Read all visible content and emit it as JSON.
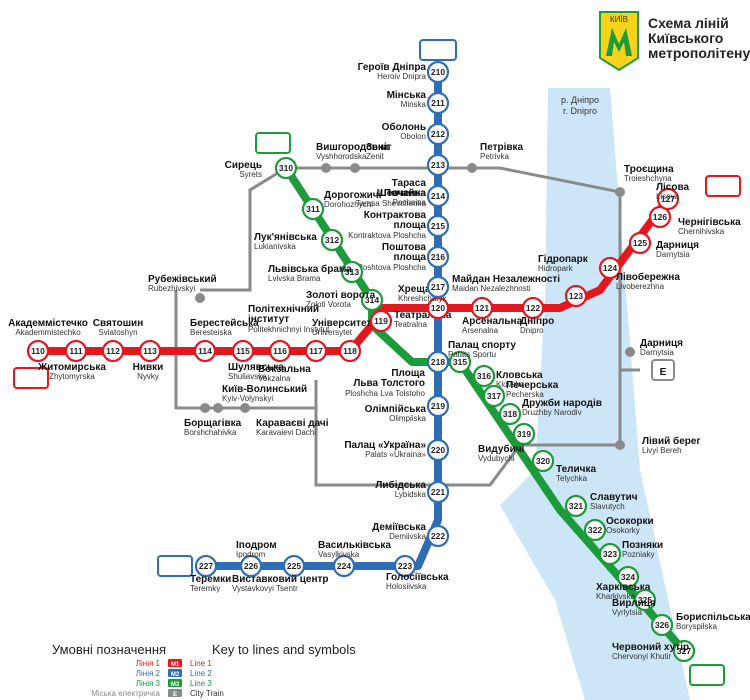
{
  "title": {
    "lines": [
      "Схема ліній",
      "Київського",
      "метрополітену"
    ],
    "logo_text": "КИЇВ"
  },
  "river": {
    "ua": "р. Дніпро",
    "en": "r. Dnipro"
  },
  "colors": {
    "m1": "#e3171e",
    "m2": "#2f6db5",
    "m3": "#1b9b3a",
    "city_train": "#8a8a8a",
    "river": "#cde6f7"
  },
  "line_badges": {
    "m1_west": "M1",
    "m1_east": "M1",
    "m2_north": "M2",
    "m2_south": "M2",
    "m3_north": "M3",
    "m3_south": "M3"
  },
  "stations_m1": [
    {
      "num": "110",
      "name": "Академмістечко",
      "lat": "Akademmistechko"
    },
    {
      "num": "111",
      "name": "Житомирська",
      "lat": "Zhytomyrska"
    },
    {
      "num": "112",
      "name": "Святошин",
      "lat": "Sviatoshyn"
    },
    {
      "num": "113",
      "name": "Нивки",
      "lat": "Nyvky"
    },
    {
      "num": "114",
      "name": "Берестейська",
      "lat": "Beresteiska"
    },
    {
      "num": "115",
      "name": "Шулявська",
      "lat": "Shuliavska"
    },
    {
      "num": "116",
      "name": "Політехнічний інститут",
      "lat": "Politekhnichnyi Instytut"
    },
    {
      "num": "117",
      "name": "Вокзальна",
      "lat": "Vokzalna"
    },
    {
      "num": "118",
      "name": "Університет",
      "lat": "Universytet"
    },
    {
      "num": "119",
      "name": "Театральна",
      "lat": "Teatralna"
    },
    {
      "num": "120",
      "name": "Хрещатик",
      "lat": "Khreshchatyk"
    },
    {
      "num": "121",
      "name": "Арсенальна",
      "lat": "Arsenalna"
    },
    {
      "num": "122",
      "name": "Дніпро",
      "lat": "Dnipro"
    },
    {
      "num": "123",
      "name": "Гідропарк",
      "lat": "Hidropark"
    },
    {
      "num": "124",
      "name": "Лівобережна",
      "lat": "Livoberezhna"
    },
    {
      "num": "125",
      "name": "Дарниця",
      "lat": "Darnytsia"
    },
    {
      "num": "126",
      "name": "Чернігівська",
      "lat": "Chernihivska"
    },
    {
      "num": "127",
      "name": "Лісова",
      "lat": "Lisova"
    }
  ],
  "stations_m2": [
    {
      "num": "210",
      "name": "Героїв Дніпра",
      "lat": "Heroiv Dnipra"
    },
    {
      "num": "211",
      "name": "Мінська",
      "lat": "Minska"
    },
    {
      "num": "212",
      "name": "Оболонь",
      "lat": "Obolon"
    },
    {
      "num": "213",
      "name": "Почайна",
      "lat": "Pochaina"
    },
    {
      "num": "214",
      "name": "Тараса Шевченка",
      "lat": "Tarasa Shevchenka"
    },
    {
      "num": "215",
      "name": "Контрактова площа",
      "lat": "Kontraktova Ploshcha"
    },
    {
      "num": "216",
      "name": "Поштова площа",
      "lat": "Poshtova Ploshcha"
    },
    {
      "num": "217",
      "name": "Майдан Незалежності",
      "lat": "Maidan Nezalezhnosti"
    },
    {
      "num": "218",
      "name": "Площа Льва Толстого",
      "lat": "Ploshcha Lva Tolstoho"
    },
    {
      "num": "219",
      "name": "Олімпійська",
      "lat": "Olimpiiska"
    },
    {
      "num": "220",
      "name": "Палац «Україна»",
      "lat": "Palats «Ukraina»"
    },
    {
      "num": "221",
      "name": "Либідська",
      "lat": "Lybidska"
    },
    {
      "num": "222",
      "name": "Деміївська",
      "lat": "Demiivska"
    },
    {
      "num": "223",
      "name": "Голосіївська",
      "lat": "Holosiivska"
    },
    {
      "num": "224",
      "name": "Васильківська",
      "lat": "Vasylkivska"
    },
    {
      "num": "225",
      "name": "Виставковий центр",
      "lat": "Vystavkovyi Tsentr"
    },
    {
      "num": "226",
      "name": "Іподром",
      "lat": "Ipodrom"
    },
    {
      "num": "227",
      "name": "Теремки",
      "lat": "Teremky"
    }
  ],
  "stations_m3": [
    {
      "num": "310",
      "name": "Сирець",
      "lat": "Syrets"
    },
    {
      "num": "311",
      "name": "Дорогожичі",
      "lat": "Dorohozhychi"
    },
    {
      "num": "312",
      "name": "Лук'янівська",
      "lat": "Lukianivska"
    },
    {
      "num": "313",
      "name": "Львівська брама",
      "lat": "Lvivska Brama"
    },
    {
      "num": "314",
      "name": "Золоті ворота",
      "lat": "Zoloti Vorota"
    },
    {
      "num": "315",
      "name": "Палац спорту",
      "lat": "Palats Sportu"
    },
    {
      "num": "316",
      "name": "Кловська",
      "lat": "Klovska"
    },
    {
      "num": "317",
      "name": "Печерська",
      "lat": "Pecherska"
    },
    {
      "num": "318",
      "name": "Дружби народів",
      "lat": "Druzhby Narodiv"
    },
    {
      "num": "319",
      "name": "Видубичі",
      "lat": "Vydubychi"
    },
    {
      "num": "320",
      "name": "Теличка",
      "lat": "Telychka"
    },
    {
      "num": "321",
      "name": "Славутич",
      "lat": "Slavutych"
    },
    {
      "num": "322",
      "name": "Осокорки",
      "lat": "Osokorky"
    },
    {
      "num": "323",
      "name": "Позняки",
      "lat": "Pozniaky"
    },
    {
      "num": "324",
      "name": "Харківська",
      "lat": "Kharkivska"
    },
    {
      "num": "325",
      "name": "Вирлиця",
      "lat": "Vyrlytsia"
    },
    {
      "num": "326",
      "name": "Бориспільська",
      "lat": "Boryspilska"
    },
    {
      "num": "327",
      "name": "Червоний хутір",
      "lat": "Chervonyi Khutir"
    }
  ],
  "city_train_stations": [
    {
      "name": "Вишгородська",
      "lat": "Vyshhorodska"
    },
    {
      "name": "Зеніт",
      "lat": "Zenit"
    },
    {
      "name": "Петрівка",
      "lat": "Petrivka"
    },
    {
      "name": "Троєщина",
      "lat": "Troieshchyna"
    },
    {
      "name": "Рубежівський",
      "lat": "Rubezhivskyi"
    },
    {
      "name": "Київ-Волинський",
      "lat": "Kyiv-Volynskyi"
    },
    {
      "name": "Борщагівка",
      "lat": "Borshchahivka"
    },
    {
      "name": "Караваєві дачі",
      "lat": "Karavaievi Dachi"
    },
    {
      "name": "Дарниця",
      "lat": "Darnytsia"
    },
    {
      "name": "Лівий берег",
      "lat": "Livyi Bereh"
    }
  ],
  "legend": {
    "heading_ua": "Умовні позначення",
    "heading_en": "Key to lines and symbols",
    "items": [
      {
        "ua": "Лінія 1",
        "badge": "M1",
        "en": "Line 1"
      },
      {
        "ua": "Лінія 2",
        "badge": "M2",
        "en": "Line 2"
      },
      {
        "ua": "Лінія 3",
        "badge": "M3",
        "en": "Line 3"
      },
      {
        "ua": "Міська електричка",
        "badge": "E",
        "en": "City Train"
      }
    ]
  }
}
